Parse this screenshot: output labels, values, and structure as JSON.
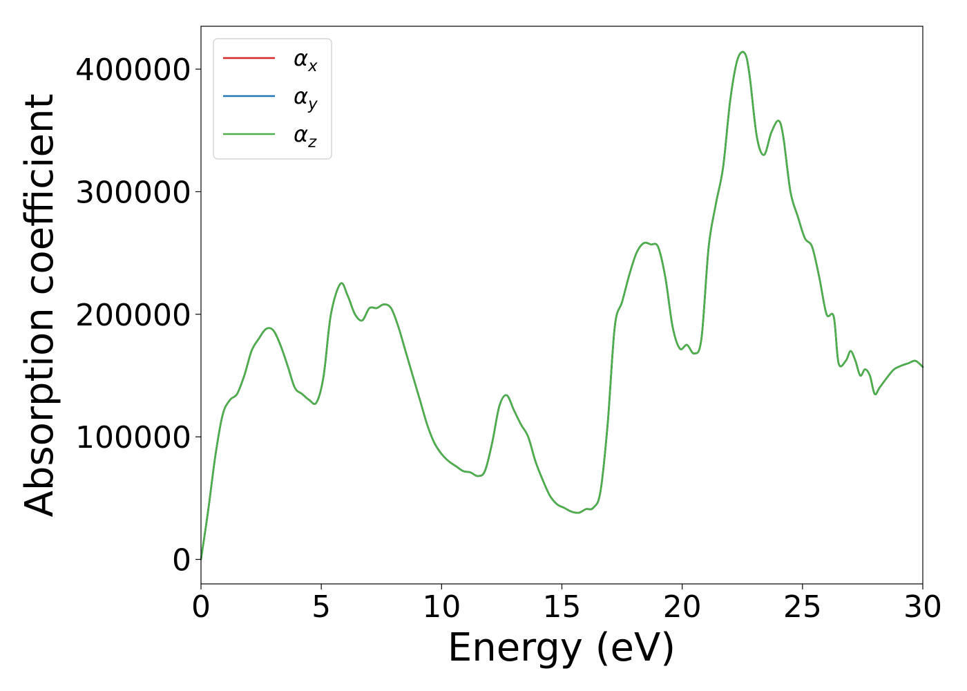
{
  "chart_data": {
    "type": "line",
    "xlabel": "Energy (eV)",
    "ylabel": "Absorption coefficient",
    "xlim": [
      0,
      30
    ],
    "ylim": [
      -20000,
      435000
    ],
    "xticks": [
      0,
      5,
      10,
      15,
      20,
      25,
      30
    ],
    "yticks": [
      0,
      100000,
      200000,
      300000,
      400000
    ],
    "grid": false,
    "legend_position": "top-left",
    "series": [
      {
        "name": "α",
        "subscript": "x",
        "color": "#d62728"
      },
      {
        "name": "α",
        "subscript": "y",
        "color": "#1f77b4"
      },
      {
        "name": "α",
        "subscript": "z",
        "color": "#4daf4a"
      }
    ],
    "x": [
      0,
      0.3,
      0.6,
      0.9,
      1.2,
      1.5,
      1.8,
      2.1,
      2.4,
      2.7,
      3.0,
      3.3,
      3.6,
      3.9,
      4.2,
      4.5,
      4.8,
      5.1,
      5.4,
      5.8,
      6.1,
      6.4,
      6.7,
      7.0,
      7.3,
      7.6,
      7.9,
      8.2,
      8.5,
      8.8,
      9.1,
      9.4,
      9.7,
      10.0,
      10.3,
      10.6,
      10.9,
      11.2,
      11.5,
      11.8,
      12.1,
      12.4,
      12.7,
      13.0,
      13.3,
      13.6,
      13.9,
      14.2,
      14.5,
      14.8,
      15.1,
      15.4,
      15.7,
      16.0,
      16.3,
      16.6,
      16.9,
      17.2,
      17.5,
      17.8,
      18.1,
      18.4,
      18.7,
      19.0,
      19.3,
      19.6,
      19.9,
      20.2,
      20.5,
      20.8,
      21.1,
      21.4,
      21.7,
      22.0,
      22.3,
      22.6,
      22.8,
      23.1,
      23.4,
      23.7,
      24.0,
      24.2,
      24.5,
      24.8,
      25.1,
      25.4,
      25.7,
      26.0,
      26.3,
      26.5,
      26.8,
      27.0,
      27.2,
      27.4,
      27.6,
      27.8,
      28.0,
      28.2,
      28.5,
      28.8,
      29.1,
      29.4,
      29.7,
      30.0
    ],
    "values": [
      0,
      40000,
      85000,
      118000,
      130000,
      135000,
      150000,
      170000,
      180000,
      188000,
      187000,
      175000,
      158000,
      140000,
      135000,
      130000,
      128000,
      150000,
      200000,
      225000,
      215000,
      200000,
      195000,
      205000,
      205000,
      208000,
      205000,
      190000,
      170000,
      150000,
      130000,
      110000,
      95000,
      86000,
      80000,
      76000,
      72000,
      71000,
      68000,
      72000,
      95000,
      125000,
      134000,
      122000,
      110000,
      100000,
      80000,
      65000,
      52000,
      45000,
      42000,
      39000,
      38000,
      41000,
      42000,
      55000,
      110000,
      190000,
      210000,
      232000,
      250000,
      258000,
      257000,
      255000,
      230000,
      190000,
      172000,
      175000,
      168000,
      180000,
      255000,
      290000,
      320000,
      375000,
      408000,
      413000,
      395000,
      345000,
      330000,
      348000,
      358000,
      345000,
      300000,
      280000,
      262000,
      255000,
      230000,
      200000,
      198000,
      160000,
      162000,
      170000,
      162000,
      150000,
      155000,
      150000,
      135000,
      140000,
      148000,
      155000,
      158000,
      160000,
      162000,
      157000
    ]
  }
}
